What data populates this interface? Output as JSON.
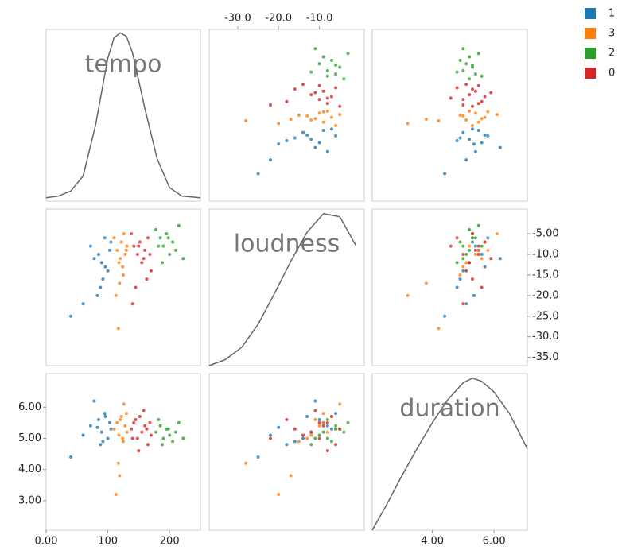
{
  "chart_data": {
    "type": "scatter_matrix",
    "variables": [
      "tempo",
      "loudness",
      "duration"
    ],
    "lims": {
      "tempo": [
        0,
        250
      ],
      "loudness": [
        -37,
        1
      ],
      "duration": [
        2.05,
        7.08
      ]
    },
    "tempo_ticks": [
      {
        "value": 0,
        "label": "0.00"
      },
      100,
      200
    ],
    "loudness_x_ticks": [
      {
        "value": -30,
        "label": "-30.0"
      },
      {
        "value": -20,
        "label": "-20.0"
      },
      {
        "value": -10,
        "label": "-10.0"
      }
    ],
    "loudness_y_ticks": [
      {
        "value": -5,
        "label": "-5.00"
      },
      {
        "value": -10,
        "label": "-10.0"
      },
      {
        "value": -15,
        "label": "-15.0"
      },
      {
        "value": -20,
        "label": "-20.0"
      },
      {
        "value": -25,
        "label": "-25.0"
      },
      {
        "value": -30,
        "label": "-30.0"
      },
      {
        "value": -35,
        "label": "-35.0"
      }
    ],
    "duration_x_ticks": [
      {
        "value": 4,
        "label": "4.00"
      },
      {
        "value": 6,
        "label": "6.00"
      }
    ],
    "duration_y_ticks": [
      {
        "value": 3,
        "label": "3.00"
      },
      {
        "value": 4,
        "label": "4.00"
      },
      {
        "value": 5,
        "label": "5.00"
      },
      {
        "value": 6,
        "label": "6.00"
      }
    ],
    "density_lim": [
      0,
      1.02
    ],
    "densities": {
      "tempo": {
        "x": [
          0,
          20,
          40,
          60,
          80,
          100,
          110,
          120,
          130,
          140,
          160,
          180,
          200,
          220,
          250
        ],
        "values": [
          0.02,
          0.03,
          0.06,
          0.15,
          0.45,
          0.85,
          0.97,
          1.0,
          0.98,
          0.88,
          0.55,
          0.25,
          0.08,
          0.03,
          0.02
        ]
      },
      "loudness": {
        "x": [
          -37,
          -33,
          -29,
          -25,
          -21,
          -17,
          -13,
          -9,
          -5,
          -1
        ],
        "values": [
          0.0,
          0.04,
          0.12,
          0.27,
          0.47,
          0.68,
          0.87,
          0.99,
          0.97,
          0.78
        ]
      },
      "duration": {
        "x": [
          2.05,
          2.5,
          3,
          3.5,
          4,
          4.5,
          5,
          5.3,
          5.6,
          6,
          6.5,
          7.08
        ],
        "values": [
          0.0,
          0.16,
          0.35,
          0.53,
          0.7,
          0.85,
          0.96,
          0.99,
          0.97,
          0.9,
          0.76,
          0.53
        ]
      }
    },
    "series": [
      {
        "name": "1",
        "color": "#1f77b4",
        "tempo": [
          72,
          85,
          90,
          95,
          100,
          103,
          88,
          78,
          105,
          60,
          40,
          96,
          92,
          83
        ],
        "loudness": [
          -8,
          -10,
          -12,
          -6,
          -14,
          -9,
          -18,
          -11,
          -7,
          -22,
          -25,
          -13,
          -16,
          -20
        ],
        "duration": [
          5.4,
          5.6,
          5.2,
          5.8,
          5.0,
          5.5,
          4.8,
          6.2,
          5.3,
          5.1,
          4.4,
          5.7,
          4.9,
          5.35
        ]
      },
      {
        "name": "3",
        "color": "#ff7f0e",
        "tempo": [
          110,
          115,
          118,
          122,
          125,
          128,
          131,
          113,
          120,
          126,
          117,
          124,
          130,
          119
        ],
        "loudness": [
          -6,
          -9,
          -12,
          -7,
          -15,
          -10,
          -8,
          -20,
          -11,
          -5,
          -28,
          -13,
          -9,
          -17
        ],
        "duration": [
          5.3,
          5.5,
          5.1,
          5.7,
          4.9,
          5.4,
          5.2,
          3.2,
          5.6,
          6.1,
          4.2,
          5.0,
          5.8,
          3.8
        ]
      },
      {
        "name": "2",
        "color": "#2ca02c",
        "tempo": [
          178,
          185,
          190,
          195,
          200,
          205,
          210,
          215,
          222,
          188,
          198,
          182
        ],
        "loudness": [
          -4,
          -6,
          -8,
          -5,
          -10,
          -7,
          -9,
          -3,
          -11,
          -12,
          -6,
          -8
        ],
        "duration": [
          5.2,
          5.4,
          5.0,
          5.3,
          5.1,
          4.9,
          5.2,
          5.5,
          5.0,
          4.8,
          5.3,
          5.6
        ]
      },
      {
        "name": "0",
        "color": "#d62728",
        "tempo": [
          138,
          142,
          148,
          152,
          155,
          160,
          165,
          170,
          145,
          158,
          150,
          163,
          140,
          168
        ],
        "loudness": [
          -5,
          -8,
          -10,
          -7,
          -12,
          -9,
          -6,
          -14,
          -18,
          -11,
          -8,
          -16,
          -22,
          -10
        ],
        "duration": [
          5.3,
          5.5,
          5.0,
          5.7,
          5.2,
          5.4,
          4.8,
          5.1,
          5.6,
          5.9,
          4.6,
          5.3,
          5.0,
          5.5
        ]
      }
    ]
  }
}
